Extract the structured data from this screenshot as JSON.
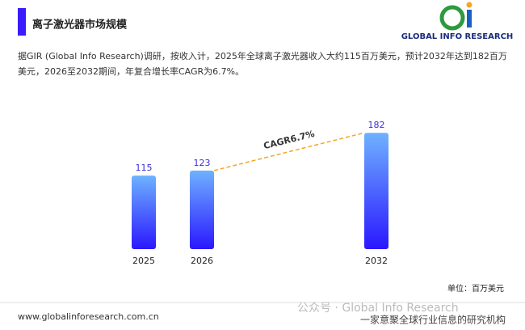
{
  "header": {
    "title": "离子激光器市场规模",
    "logo": "GLOBAL INFO RESEARCH"
  },
  "description": "据GIR (Global Info Research)调研，按收入计，2025年全球离子激光器收入大约115百万美元，预计2032年达到182百万美元，2026至2032期间，年复合增长率CAGR为6.7%。",
  "chart_data": {
    "type": "bar",
    "categories": [
      "2025",
      "2026",
      "2032"
    ],
    "values": [
      115,
      123,
      182
    ],
    "color_top": "#6fb2ff",
    "color_bottom": "#2a17ff",
    "ylim": [
      0,
      200
    ],
    "annotation": "CAGR6.7%",
    "annotation_color": "#f5a623",
    "unit": "单位：百万美元"
  },
  "footer": {
    "url": "www.globalinforesearch.com.cn",
    "watermark": "公众号 · Global Info Research",
    "tagline": "一家意聚全球行业信息的研究机构"
  }
}
